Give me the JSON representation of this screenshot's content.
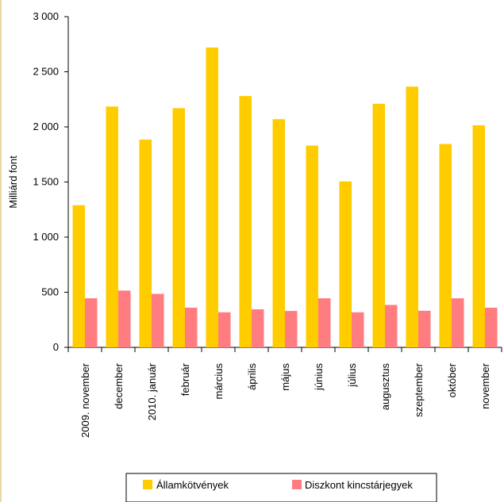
{
  "chart_data": {
    "type": "bar",
    "title": "",
    "xlabel": "",
    "ylabel": "Milliárd font",
    "ylim": [
      0,
      3000
    ],
    "y_ticks": [
      0,
      500,
      1000,
      1500,
      2000,
      2500,
      3000
    ],
    "y_tick_labels": [
      "0",
      "500",
      "1 000",
      "1 500",
      "2 000",
      "2 500",
      "3 000"
    ],
    "grid": false,
    "legend_position": "bottom",
    "categories": [
      "2009. november",
      "december",
      "2010. január",
      "február",
      "március",
      "április",
      "május",
      "június",
      "július",
      "augusztus",
      "szeptember",
      "október",
      "november"
    ],
    "series": [
      {
        "name": "Államkötvények",
        "color": "#ffcc00",
        "values": [
          1290,
          2185,
          1885,
          2170,
          2720,
          2280,
          2070,
          1830,
          1505,
          2210,
          2365,
          1845,
          2015
        ]
      },
      {
        "name": "Diszkont kincstárjegyek",
        "color": "#ff7c80",
        "values": [
          445,
          515,
          485,
          360,
          318,
          345,
          330,
          445,
          318,
          385,
          332,
          445,
          360
        ]
      }
    ]
  }
}
